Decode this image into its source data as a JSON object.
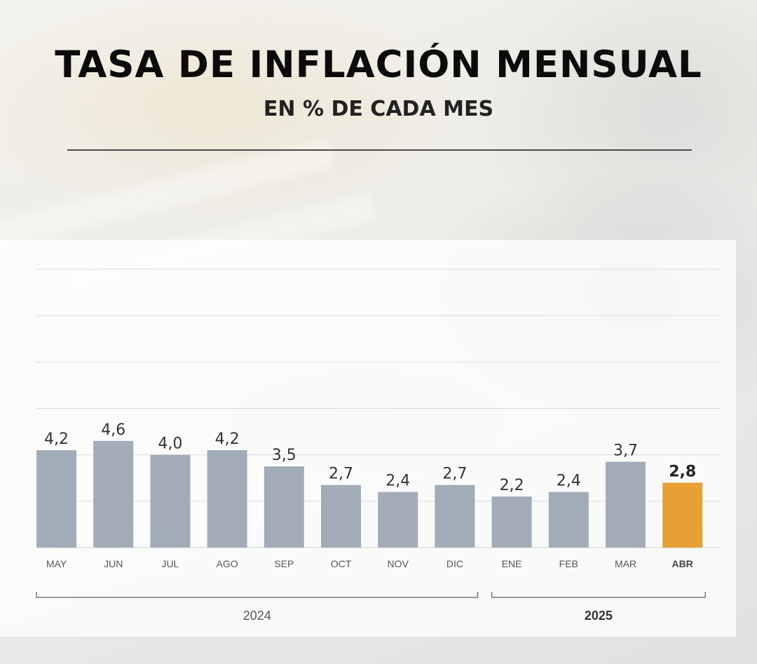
{
  "header": {
    "title": "TASA DE INFLACIÓN MENSUAL",
    "subtitle": "EN % DE CADA MES"
  },
  "colors": {
    "bar": "#a2acb9",
    "highlight": "#e6a033"
  },
  "chart_data": {
    "type": "bar",
    "title": "TASA DE INFLACIÓN MENSUAL",
    "subtitle": "EN % DE CADA MES",
    "categories": [
      "MAY",
      "JUN",
      "JUL",
      "AGO",
      "SEP",
      "OCT",
      "NOV",
      "DIC",
      "ENE",
      "FEB",
      "MAR",
      "ABR"
    ],
    "values": [
      4.2,
      4.6,
      4.0,
      4.2,
      3.5,
      2.7,
      2.4,
      2.7,
      2.2,
      2.4,
      3.7,
      2.8
    ],
    "value_labels": [
      "4,2",
      "4,6",
      "4,0",
      "4,2",
      "3,5",
      "2,7",
      "2,4",
      "2,7",
      "2,2",
      "2,4",
      "3,7",
      "2,8"
    ],
    "highlight_category": "ABR",
    "ylim": [
      0,
      12
    ],
    "grid": true,
    "legend": "none",
    "groups": [
      {
        "label": "2024",
        "categories": [
          "MAY",
          "JUN",
          "JUL",
          "AGO",
          "SEP",
          "OCT",
          "NOV",
          "DIC"
        ]
      },
      {
        "label": "2025",
        "categories": [
          "ENE",
          "FEB",
          "MAR",
          "ABR"
        ],
        "bold": true
      }
    ]
  }
}
